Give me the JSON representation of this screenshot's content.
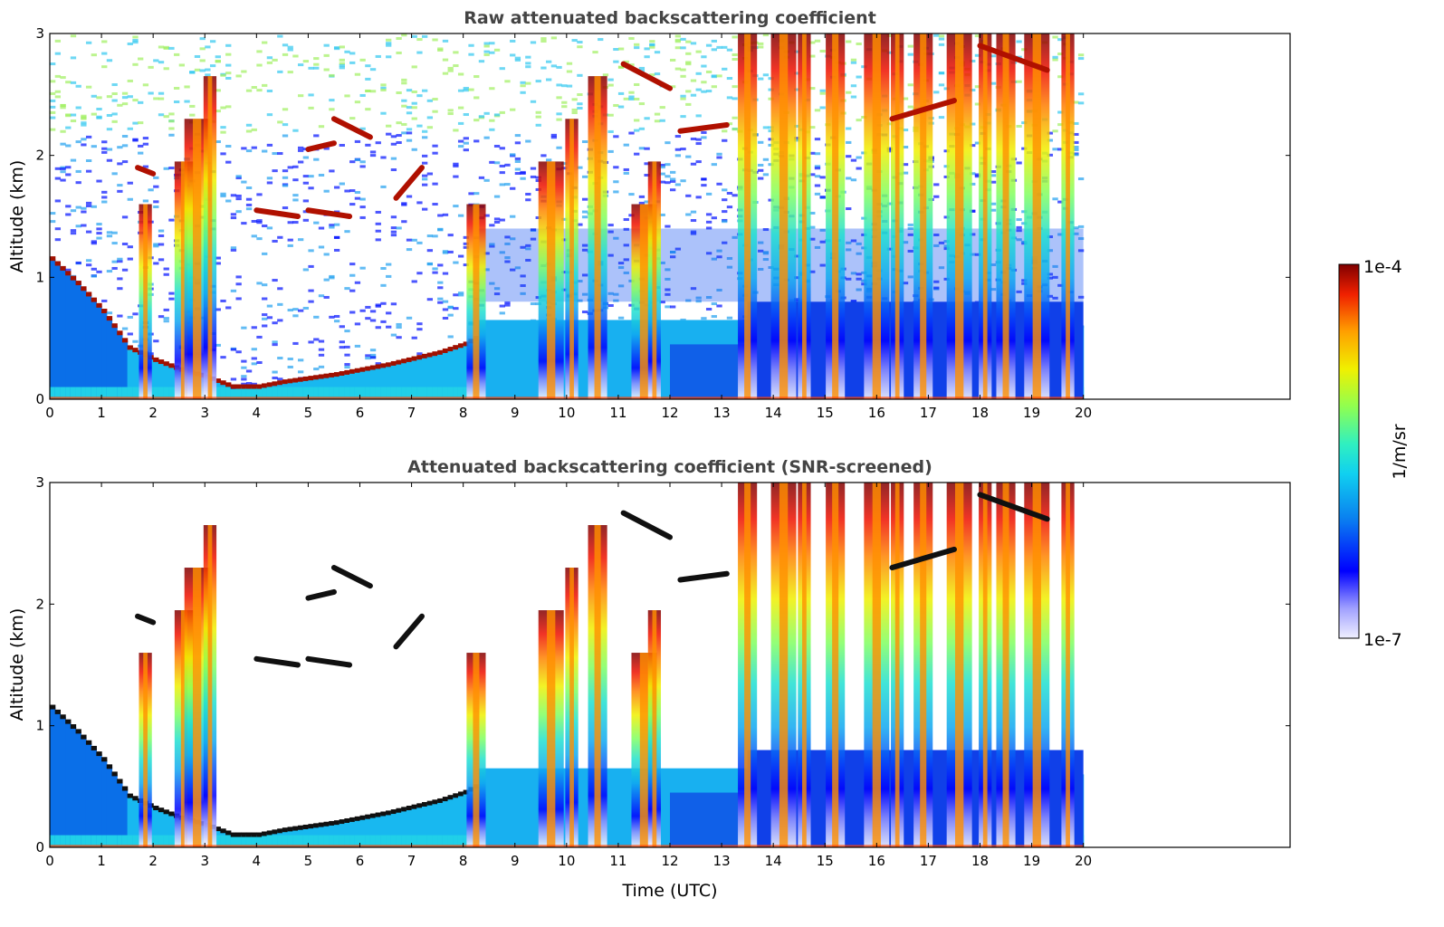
{
  "chart_data": [
    {
      "type": "heatmap",
      "title": "Raw attenuated backscattering coefficient",
      "xlabel": "",
      "ylabel": "Altitude (km)",
      "xlim": [
        0,
        24
      ],
      "ylim": [
        0,
        3
      ],
      "x_ticks": [
        "0",
        "1",
        "2",
        "3",
        "4",
        "5",
        "6",
        "7",
        "8",
        "9",
        "10",
        "11",
        "12",
        "13",
        "14",
        "15",
        "16",
        "17",
        "18",
        "19",
        "20"
      ],
      "y_ticks": [
        "0",
        "1",
        "2",
        "3"
      ],
      "data_extent_hours": [
        0,
        20
      ],
      "boundary_layer_top_km": {
        "hours": [
          0,
          0.5,
          1.0,
          1.5,
          2.0,
          2.5,
          3.0,
          3.5,
          4.0,
          4.5,
          5.0,
          5.5,
          6.0,
          6.5,
          7.0,
          7.5,
          8.0,
          8.3
        ],
        "altitude": [
          1.15,
          0.95,
          0.72,
          0.42,
          0.32,
          0.24,
          0.18,
          0.1,
          0.1,
          0.14,
          0.17,
          0.2,
          0.24,
          0.28,
          0.33,
          0.38,
          0.45,
          0.52
        ]
      },
      "cloud_columns_hours": [
        1.85,
        2.6,
        2.85,
        3.1,
        8.25,
        9.7,
        10.1,
        10.6,
        11.5,
        11.7,
        13.5,
        14.2,
        14.6,
        15.2,
        16.0,
        16.4,
        16.9,
        17.6,
        18.1,
        18.5,
        19.1,
        19.7
      ],
      "elevated_layers": [
        {
          "hours": [
            1.7,
            2.0
          ],
          "altitude": [
            1.9,
            1.85
          ]
        },
        {
          "hours": [
            4.0,
            4.8
          ],
          "altitude": [
            1.55,
            1.5
          ]
        },
        {
          "hours": [
            5.0,
            5.8
          ],
          "altitude": [
            1.55,
            1.5
          ]
        },
        {
          "hours": [
            5.0,
            5.5
          ],
          "altitude": [
            2.05,
            2.1
          ]
        },
        {
          "hours": [
            5.5,
            6.2
          ],
          "altitude": [
            2.3,
            2.15
          ]
        },
        {
          "hours": [
            6.7,
            7.2
          ],
          "altitude": [
            1.65,
            1.9
          ]
        },
        {
          "hours": [
            11.1,
            12.0
          ],
          "altitude": [
            2.75,
            2.55
          ]
        },
        {
          "hours": [
            12.2,
            13.1
          ],
          "altitude": [
            2.2,
            2.25
          ]
        },
        {
          "hours": [
            16.3,
            17.5
          ],
          "altitude": [
            2.3,
            2.45
          ]
        },
        {
          "hours": [
            18.0,
            19.3
          ],
          "altitude": [
            2.9,
            2.7
          ]
        }
      ]
    },
    {
      "type": "heatmap",
      "title": "Attenuated backscattering coefficient (SNR-screened)",
      "xlabel": "Time (UTC)",
      "ylabel": "Altitude (km)",
      "xlim": [
        0,
        24
      ],
      "ylim": [
        0,
        3
      ],
      "x_ticks": [
        "0",
        "1",
        "2",
        "3",
        "4",
        "5",
        "6",
        "7",
        "8",
        "9",
        "10",
        "11",
        "12",
        "13",
        "14",
        "15",
        "16",
        "17",
        "18",
        "19",
        "20"
      ],
      "y_ticks": [
        "0",
        "1",
        "2",
        "3"
      ],
      "data_extent_hours": [
        0,
        20
      ]
    }
  ],
  "colorbar": {
    "label": "1/m/sr",
    "min_label": "1e-7",
    "max_label": "1e-4",
    "scale": "log",
    "range": [
      1e-07,
      0.0001
    ],
    "colors": [
      "#f0f0ff",
      "#b0b0ff",
      "#0000ff",
      "#0a5fe0",
      "#10c0f0",
      "#30e0c0",
      "#80ff60",
      "#e0f000",
      "#ffc000",
      "#ff6000",
      "#e01000",
      "#800000"
    ]
  }
}
